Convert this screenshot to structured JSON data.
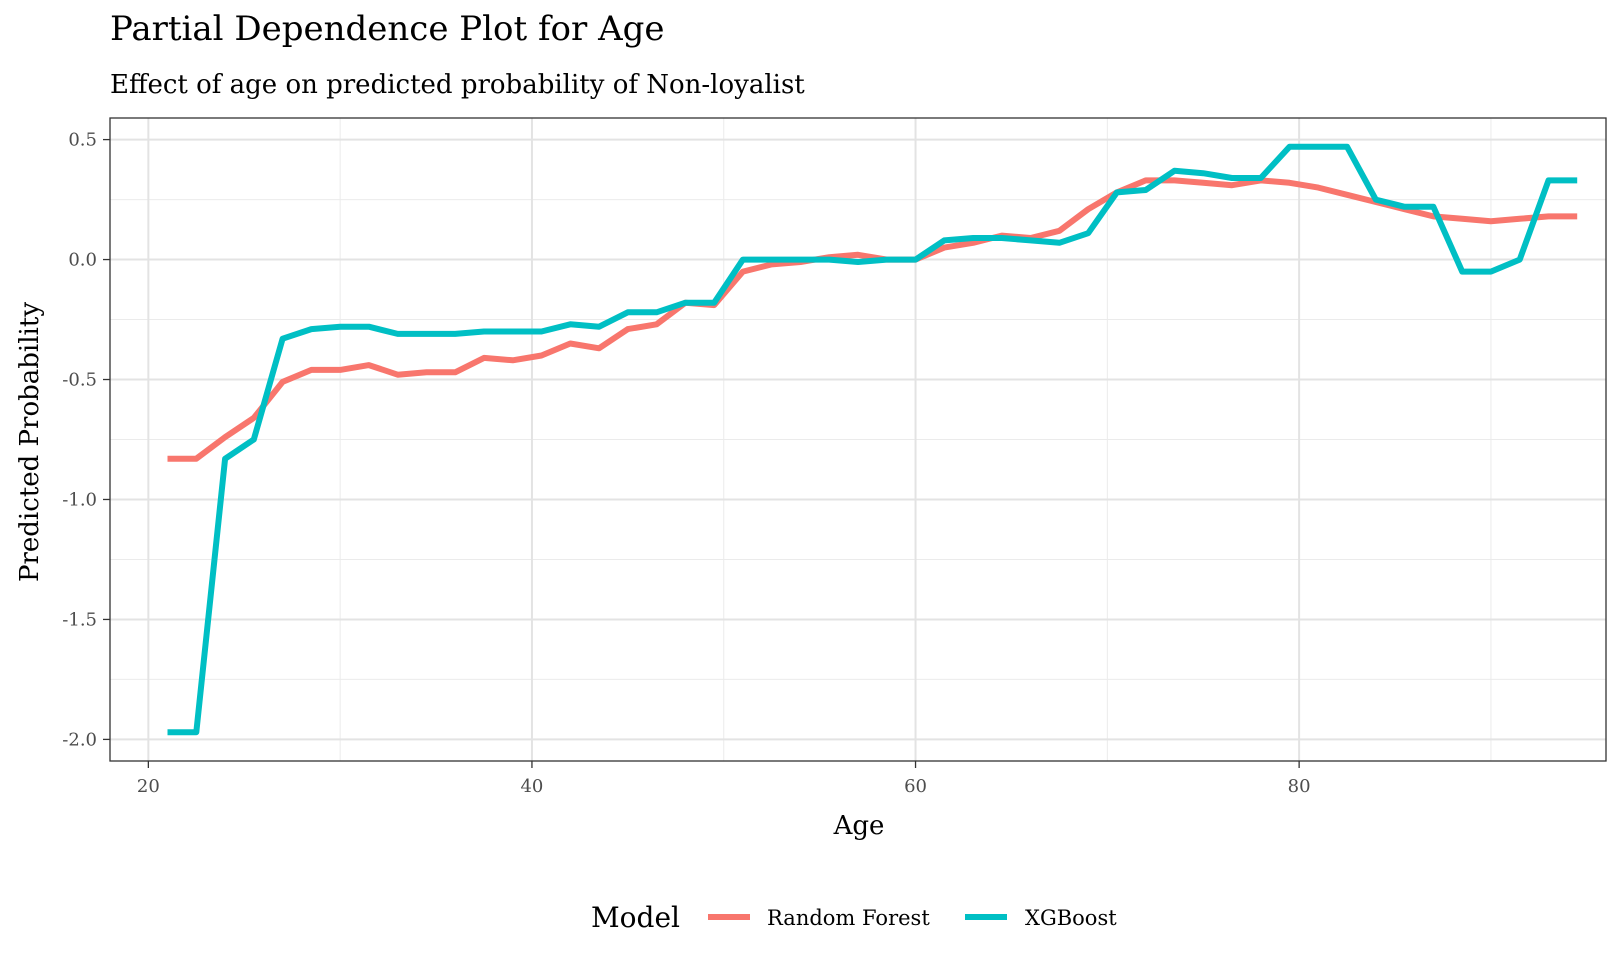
{
  "chart_data": {
    "type": "line",
    "title": "Partial Dependence Plot for Age",
    "subtitle": "Effect of age on predicted probability of Non-loyalist",
    "xlabel": "Age",
    "ylabel": "Predicted Probability",
    "xlim": [
      18,
      96
    ],
    "ylim": [
      -2.09,
      0.59
    ],
    "xticks": [
      20,
      40,
      60,
      80
    ],
    "yticks": [
      -2.0,
      -1.5,
      -1.0,
      -0.5,
      0.0,
      0.5
    ],
    "ytick_labels": [
      "-2.0",
      "-1.5",
      "-1.0",
      "-0.5",
      "0.0",
      "0.5"
    ],
    "grid": true,
    "legend": {
      "title": "Model",
      "position": "bottom"
    },
    "x": [
      21.0,
      22.5,
      24.0,
      25.5,
      27.0,
      28.5,
      30.0,
      31.5,
      33.0,
      34.5,
      36.0,
      37.5,
      39.0,
      40.5,
      42.0,
      43.5,
      45.0,
      46.5,
      48.0,
      49.5,
      51.0,
      52.5,
      54.0,
      55.5,
      57.0,
      58.5,
      60.0,
      61.5,
      63.0,
      64.5,
      66.0,
      67.5,
      69.0,
      70.5,
      72.0,
      73.5,
      75.0,
      76.5,
      78.0,
      79.5,
      81.0,
      82.5,
      84.0,
      85.5,
      87.0,
      88.5,
      90.0,
      91.5,
      93.0,
      94.5
    ],
    "series": [
      {
        "name": "Random Forest",
        "color": "#F8766D",
        "values": [
          -0.83,
          -0.83,
          -0.74,
          -0.66,
          -0.51,
          -0.46,
          -0.46,
          -0.44,
          -0.48,
          -0.47,
          -0.47,
          -0.41,
          -0.42,
          -0.4,
          -0.35,
          -0.37,
          -0.29,
          -0.27,
          -0.18,
          -0.19,
          -0.05,
          -0.02,
          -0.01,
          0.01,
          0.02,
          0.0,
          0.0,
          0.05,
          0.07,
          0.1,
          0.09,
          0.12,
          0.21,
          0.28,
          0.33,
          0.33,
          0.32,
          0.31,
          0.33,
          0.32,
          0.3,
          0.27,
          0.24,
          0.21,
          0.18,
          0.17,
          0.16,
          0.17,
          0.18,
          0.18
        ]
      },
      {
        "name": "XGBoost",
        "color": "#00BFC4",
        "values": [
          -1.97,
          -1.97,
          -0.83,
          -0.75,
          -0.33,
          -0.29,
          -0.28,
          -0.28,
          -0.31,
          -0.31,
          -0.31,
          -0.3,
          -0.3,
          -0.3,
          -0.27,
          -0.28,
          -0.22,
          -0.22,
          -0.18,
          -0.18,
          0.0,
          0.0,
          0.0,
          0.0,
          -0.01,
          0.0,
          0.0,
          0.08,
          0.09,
          0.09,
          0.08,
          0.07,
          0.11,
          0.28,
          0.29,
          0.37,
          0.36,
          0.34,
          0.34,
          0.47,
          0.47,
          0.47,
          0.25,
          0.22,
          0.22,
          -0.05,
          -0.05,
          0.0,
          0.33,
          0.33
        ]
      }
    ]
  }
}
